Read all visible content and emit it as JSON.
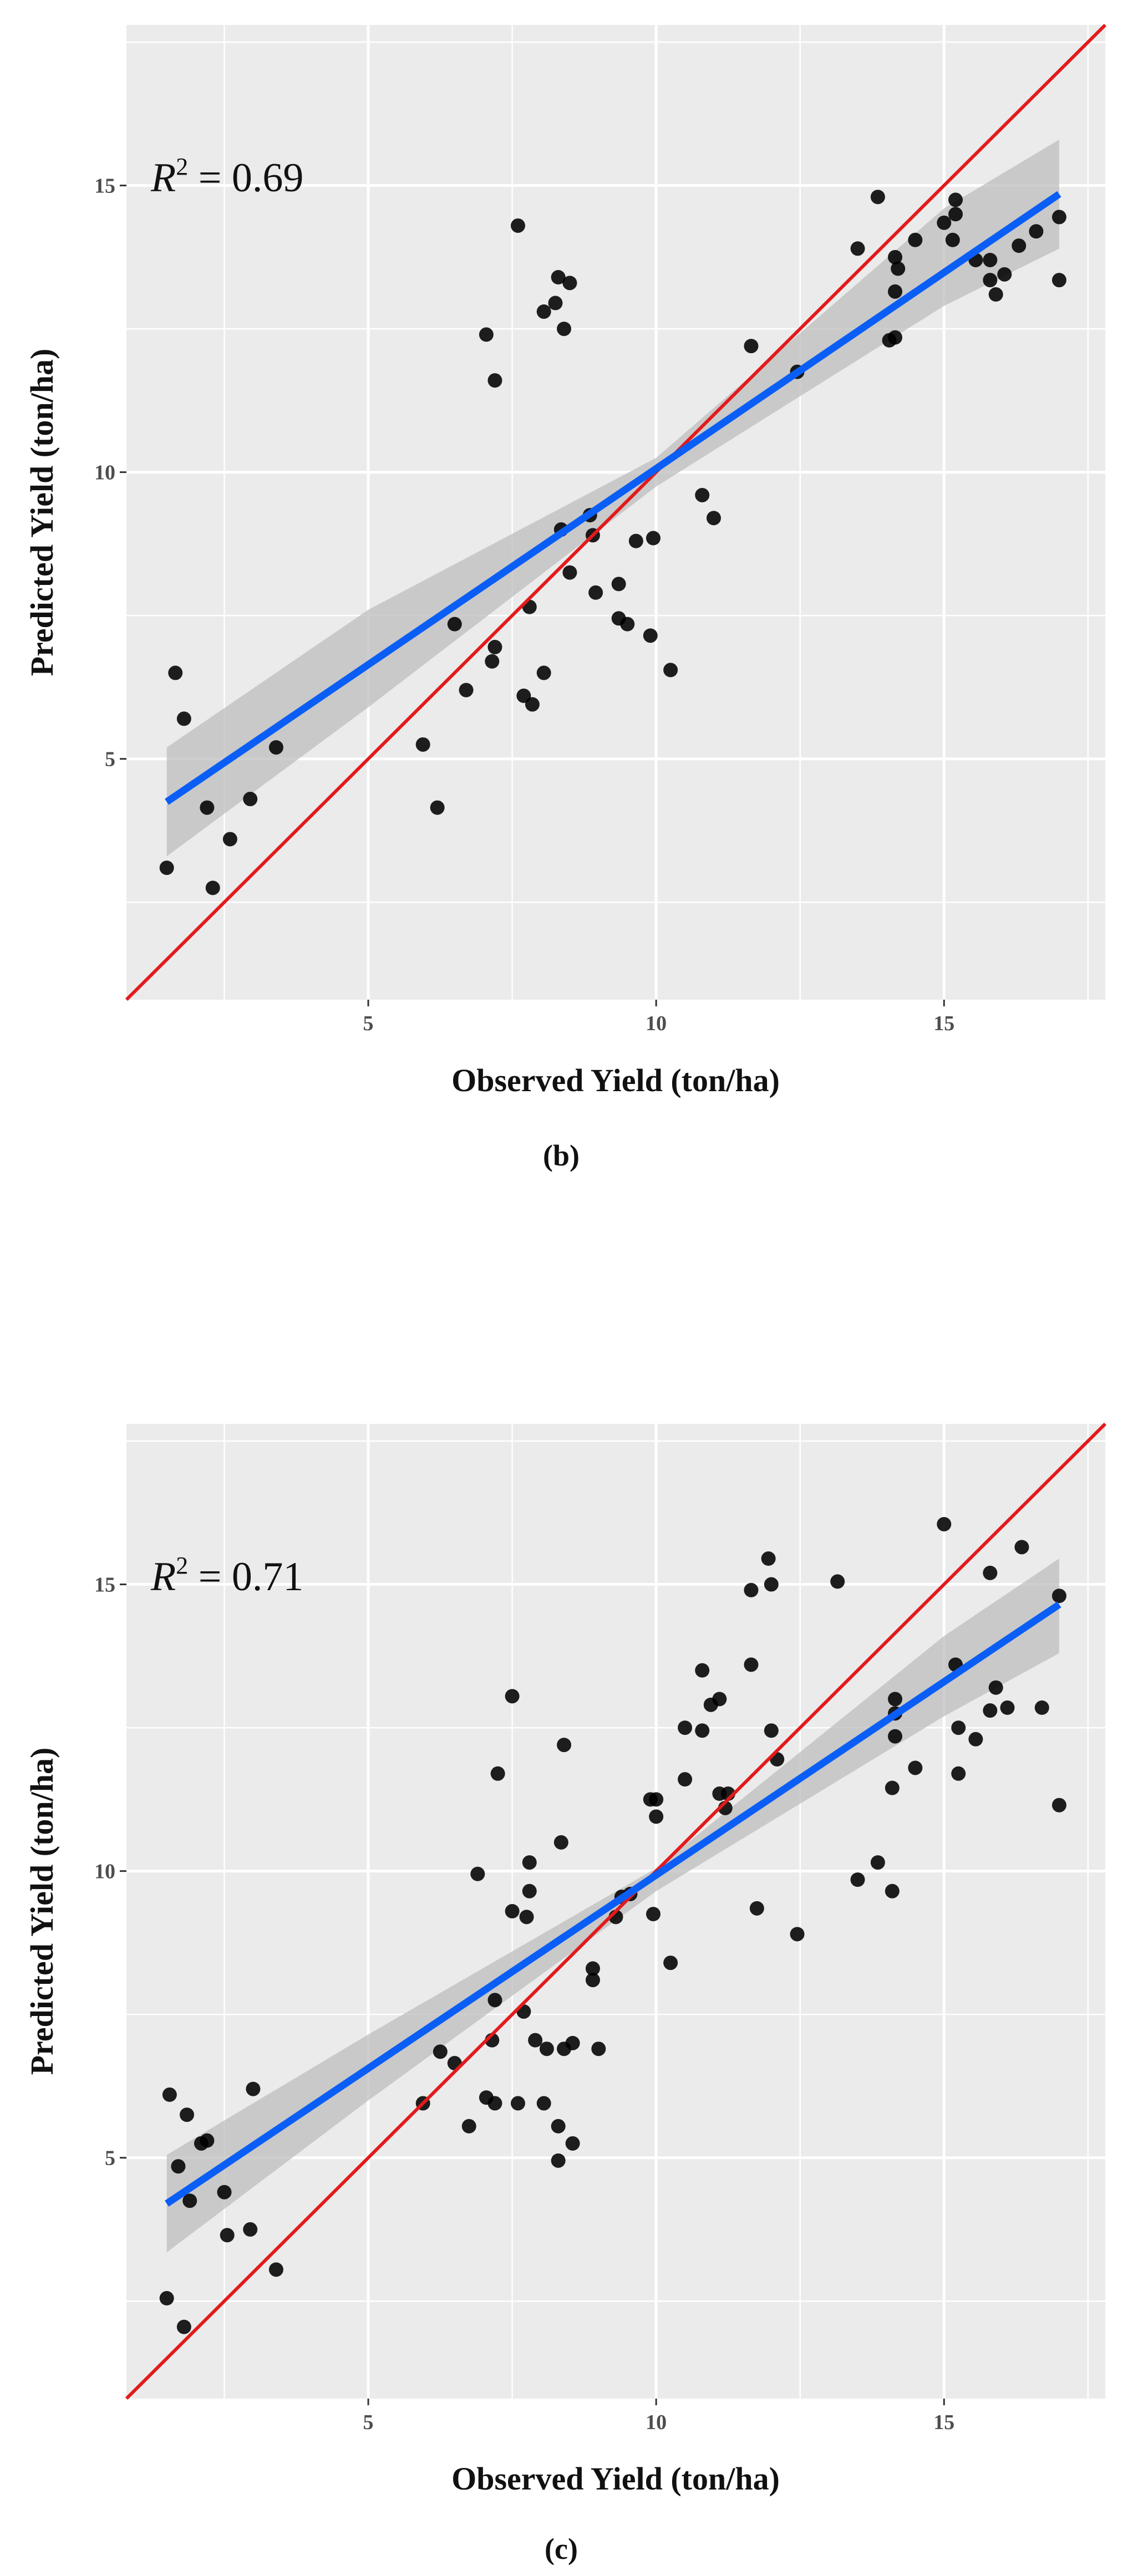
{
  "chart_data": [
    {
      "type": "scatter",
      "panel_label": "(b)",
      "annotation": {
        "r2_var": "R",
        "r2_exp": "2",
        "r2_text": " = 0.69"
      },
      "xlabel": "Observed Yield (ton/ha)",
      "ylabel": "Predicted Yield (ton/ha)",
      "xlim": [
        0.8,
        17.8
      ],
      "ylim": [
        0.8,
        17.8
      ],
      "xticks": [
        5,
        10,
        15
      ],
      "yticks": [
        5,
        10,
        15
      ],
      "identity_line": {
        "color": "#e31a1c"
      },
      "fit_line": {
        "color": "#0a5ef5",
        "x": [
          1.5,
          17.0
        ],
        "y": [
          4.25,
          14.85
        ]
      },
      "confidence_band": {
        "color": "#bdbdbd",
        "x": [
          1.5,
          5,
          10,
          15,
          17.0
        ],
        "lower": [
          3.3,
          5.9,
          9.75,
          12.9,
          13.9
        ],
        "upper": [
          5.2,
          7.6,
          10.25,
          14.6,
          15.8
        ]
      },
      "points": [
        [
          1.5,
          3.1
        ],
        [
          1.65,
          6.5
        ],
        [
          1.8,
          5.7
        ],
        [
          2.2,
          4.15
        ],
        [
          2.3,
          2.75
        ],
        [
          2.6,
          3.6
        ],
        [
          2.95,
          4.3
        ],
        [
          3.4,
          5.2
        ],
        [
          5.95,
          5.25
        ],
        [
          6.2,
          4.15
        ],
        [
          6.5,
          7.35
        ],
        [
          6.7,
          6.2
        ],
        [
          7.05,
          12.4
        ],
        [
          7.15,
          6.7
        ],
        [
          7.2,
          6.95
        ],
        [
          7.2,
          11.6
        ],
        [
          7.6,
          14.3
        ],
        [
          7.7,
          6.1
        ],
        [
          7.8,
          7.65
        ],
        [
          7.85,
          5.95
        ],
        [
          8.05,
          6.5
        ],
        [
          8.05,
          12.8
        ],
        [
          8.25,
          12.95
        ],
        [
          8.3,
          13.4
        ],
        [
          8.35,
          9.0
        ],
        [
          8.4,
          12.5
        ],
        [
          8.5,
          13.3
        ],
        [
          8.5,
          8.25
        ],
        [
          8.85,
          9.25
        ],
        [
          8.9,
          8.9
        ],
        [
          8.95,
          7.9
        ],
        [
          9.35,
          8.05
        ],
        [
          9.35,
          7.45
        ],
        [
          9.5,
          7.35
        ],
        [
          9.65,
          8.8
        ],
        [
          9.9,
          7.15
        ],
        [
          9.95,
          8.85
        ],
        [
          10.25,
          6.55
        ],
        [
          10.8,
          9.6
        ],
        [
          11.0,
          9.2
        ],
        [
          11.65,
          12.2
        ],
        [
          12.45,
          11.75
        ],
        [
          13.5,
          13.9
        ],
        [
          13.85,
          14.8
        ],
        [
          14.05,
          12.3
        ],
        [
          14.15,
          12.35
        ],
        [
          14.15,
          13.75
        ],
        [
          14.15,
          13.15
        ],
        [
          14.2,
          13.55
        ],
        [
          14.5,
          14.05
        ],
        [
          15.0,
          14.35
        ],
        [
          15.15,
          14.05
        ],
        [
          15.2,
          14.5
        ],
        [
          15.2,
          14.75
        ],
        [
          15.55,
          13.7
        ],
        [
          15.8,
          13.35
        ],
        [
          15.8,
          13.7
        ],
        [
          15.9,
          13.1
        ],
        [
          16.05,
          13.45
        ],
        [
          16.3,
          13.95
        ],
        [
          16.6,
          14.2
        ],
        [
          17.0,
          14.45
        ],
        [
          17.0,
          13.35
        ]
      ]
    },
    {
      "type": "scatter",
      "panel_label": "(c)",
      "annotation": {
        "r2_var": "R",
        "r2_exp": "2",
        "r2_text": " = 0.71"
      },
      "xlabel": "Observed Yield (ton/ha)",
      "ylabel": "Predicted Yield (ton/ha)",
      "xlim": [
        0.8,
        17.8
      ],
      "ylim": [
        0.8,
        17.8
      ],
      "xticks": [
        5,
        10,
        15
      ],
      "yticks": [
        5,
        10,
        15
      ],
      "identity_line": {
        "color": "#e31a1c"
      },
      "fit_line": {
        "color": "#0a5ef5",
        "x": [
          1.5,
          17.0
        ],
        "y": [
          4.2,
          14.65
        ]
      },
      "confidence_band": {
        "color": "#bdbdbd",
        "x": [
          1.5,
          5,
          10,
          15,
          17.0
        ],
        "lower": [
          3.35,
          6.0,
          9.65,
          12.7,
          13.8
        ],
        "upper": [
          5.05,
          7.15,
          10.05,
          14.1,
          15.45
        ]
      },
      "points": [
        [
          1.5,
          2.55
        ],
        [
          1.55,
          6.1
        ],
        [
          1.7,
          4.85
        ],
        [
          1.8,
          2.05
        ],
        [
          1.85,
          5.75
        ],
        [
          1.9,
          4.25
        ],
        [
          2.1,
          5.25
        ],
        [
          2.2,
          5.3
        ],
        [
          2.5,
          4.4
        ],
        [
          2.55,
          3.65
        ],
        [
          2.95,
          3.75
        ],
        [
          3.0,
          6.2
        ],
        [
          3.4,
          3.05
        ],
        [
          5.95,
          5.95
        ],
        [
          6.25,
          6.85
        ],
        [
          6.5,
          6.65
        ],
        [
          6.75,
          5.55
        ],
        [
          6.9,
          9.95
        ],
        [
          7.05,
          6.05
        ],
        [
          7.15,
          7.05
        ],
        [
          7.2,
          5.95
        ],
        [
          7.2,
          7.75
        ],
        [
          7.25,
          11.7
        ],
        [
          7.5,
          9.3
        ],
        [
          7.5,
          13.05
        ],
        [
          7.6,
          5.95
        ],
        [
          7.7,
          7.55
        ],
        [
          7.75,
          9.2
        ],
        [
          7.8,
          9.65
        ],
        [
          7.8,
          10.15
        ],
        [
          7.9,
          7.05
        ],
        [
          8.05,
          5.95
        ],
        [
          8.1,
          6.9
        ],
        [
          8.3,
          4.95
        ],
        [
          8.3,
          5.55
        ],
        [
          8.35,
          10.5
        ],
        [
          8.4,
          12.2
        ],
        [
          8.4,
          6.9
        ],
        [
          8.55,
          5.25
        ],
        [
          8.55,
          7.0
        ],
        [
          8.9,
          8.1
        ],
        [
          8.9,
          8.3
        ],
        [
          9.0,
          6.9
        ],
        [
          9.3,
          9.2
        ],
        [
          9.4,
          9.55
        ],
        [
          9.55,
          9.6
        ],
        [
          9.9,
          11.25
        ],
        [
          9.95,
          9.25
        ],
        [
          10.0,
          10.95
        ],
        [
          10.0,
          11.25
        ],
        [
          10.25,
          8.4
        ],
        [
          10.5,
          12.5
        ],
        [
          10.5,
          11.6
        ],
        [
          10.8,
          12.45
        ],
        [
          10.8,
          13.5
        ],
        [
          10.95,
          12.9
        ],
        [
          11.1,
          13.0
        ],
        [
          11.1,
          11.35
        ],
        [
          11.2,
          11.1
        ],
        [
          11.25,
          11.35
        ],
        [
          11.65,
          14.9
        ],
        [
          11.65,
          13.6
        ],
        [
          11.75,
          9.35
        ],
        [
          11.95,
          15.45
        ],
        [
          12.0,
          15.0
        ],
        [
          12.0,
          12.45
        ],
        [
          12.1,
          11.95
        ],
        [
          12.45,
          8.9
        ],
        [
          13.15,
          15.05
        ],
        [
          13.5,
          9.85
        ],
        [
          13.85,
          10.15
        ],
        [
          14.1,
          9.65
        ],
        [
          14.1,
          11.45
        ],
        [
          14.15,
          12.75
        ],
        [
          14.15,
          13.0
        ],
        [
          14.15,
          12.35
        ],
        [
          14.5,
          11.8
        ],
        [
          15.0,
          16.05
        ],
        [
          15.2,
          13.6
        ],
        [
          15.25,
          12.5
        ],
        [
          15.25,
          11.7
        ],
        [
          15.55,
          12.3
        ],
        [
          15.8,
          15.2
        ],
        [
          15.8,
          12.8
        ],
        [
          15.9,
          13.2
        ],
        [
          16.1,
          12.85
        ],
        [
          16.35,
          15.65
        ],
        [
          16.7,
          12.85
        ],
        [
          17.0,
          14.8
        ],
        [
          17.0,
          11.15
        ]
      ]
    }
  ]
}
